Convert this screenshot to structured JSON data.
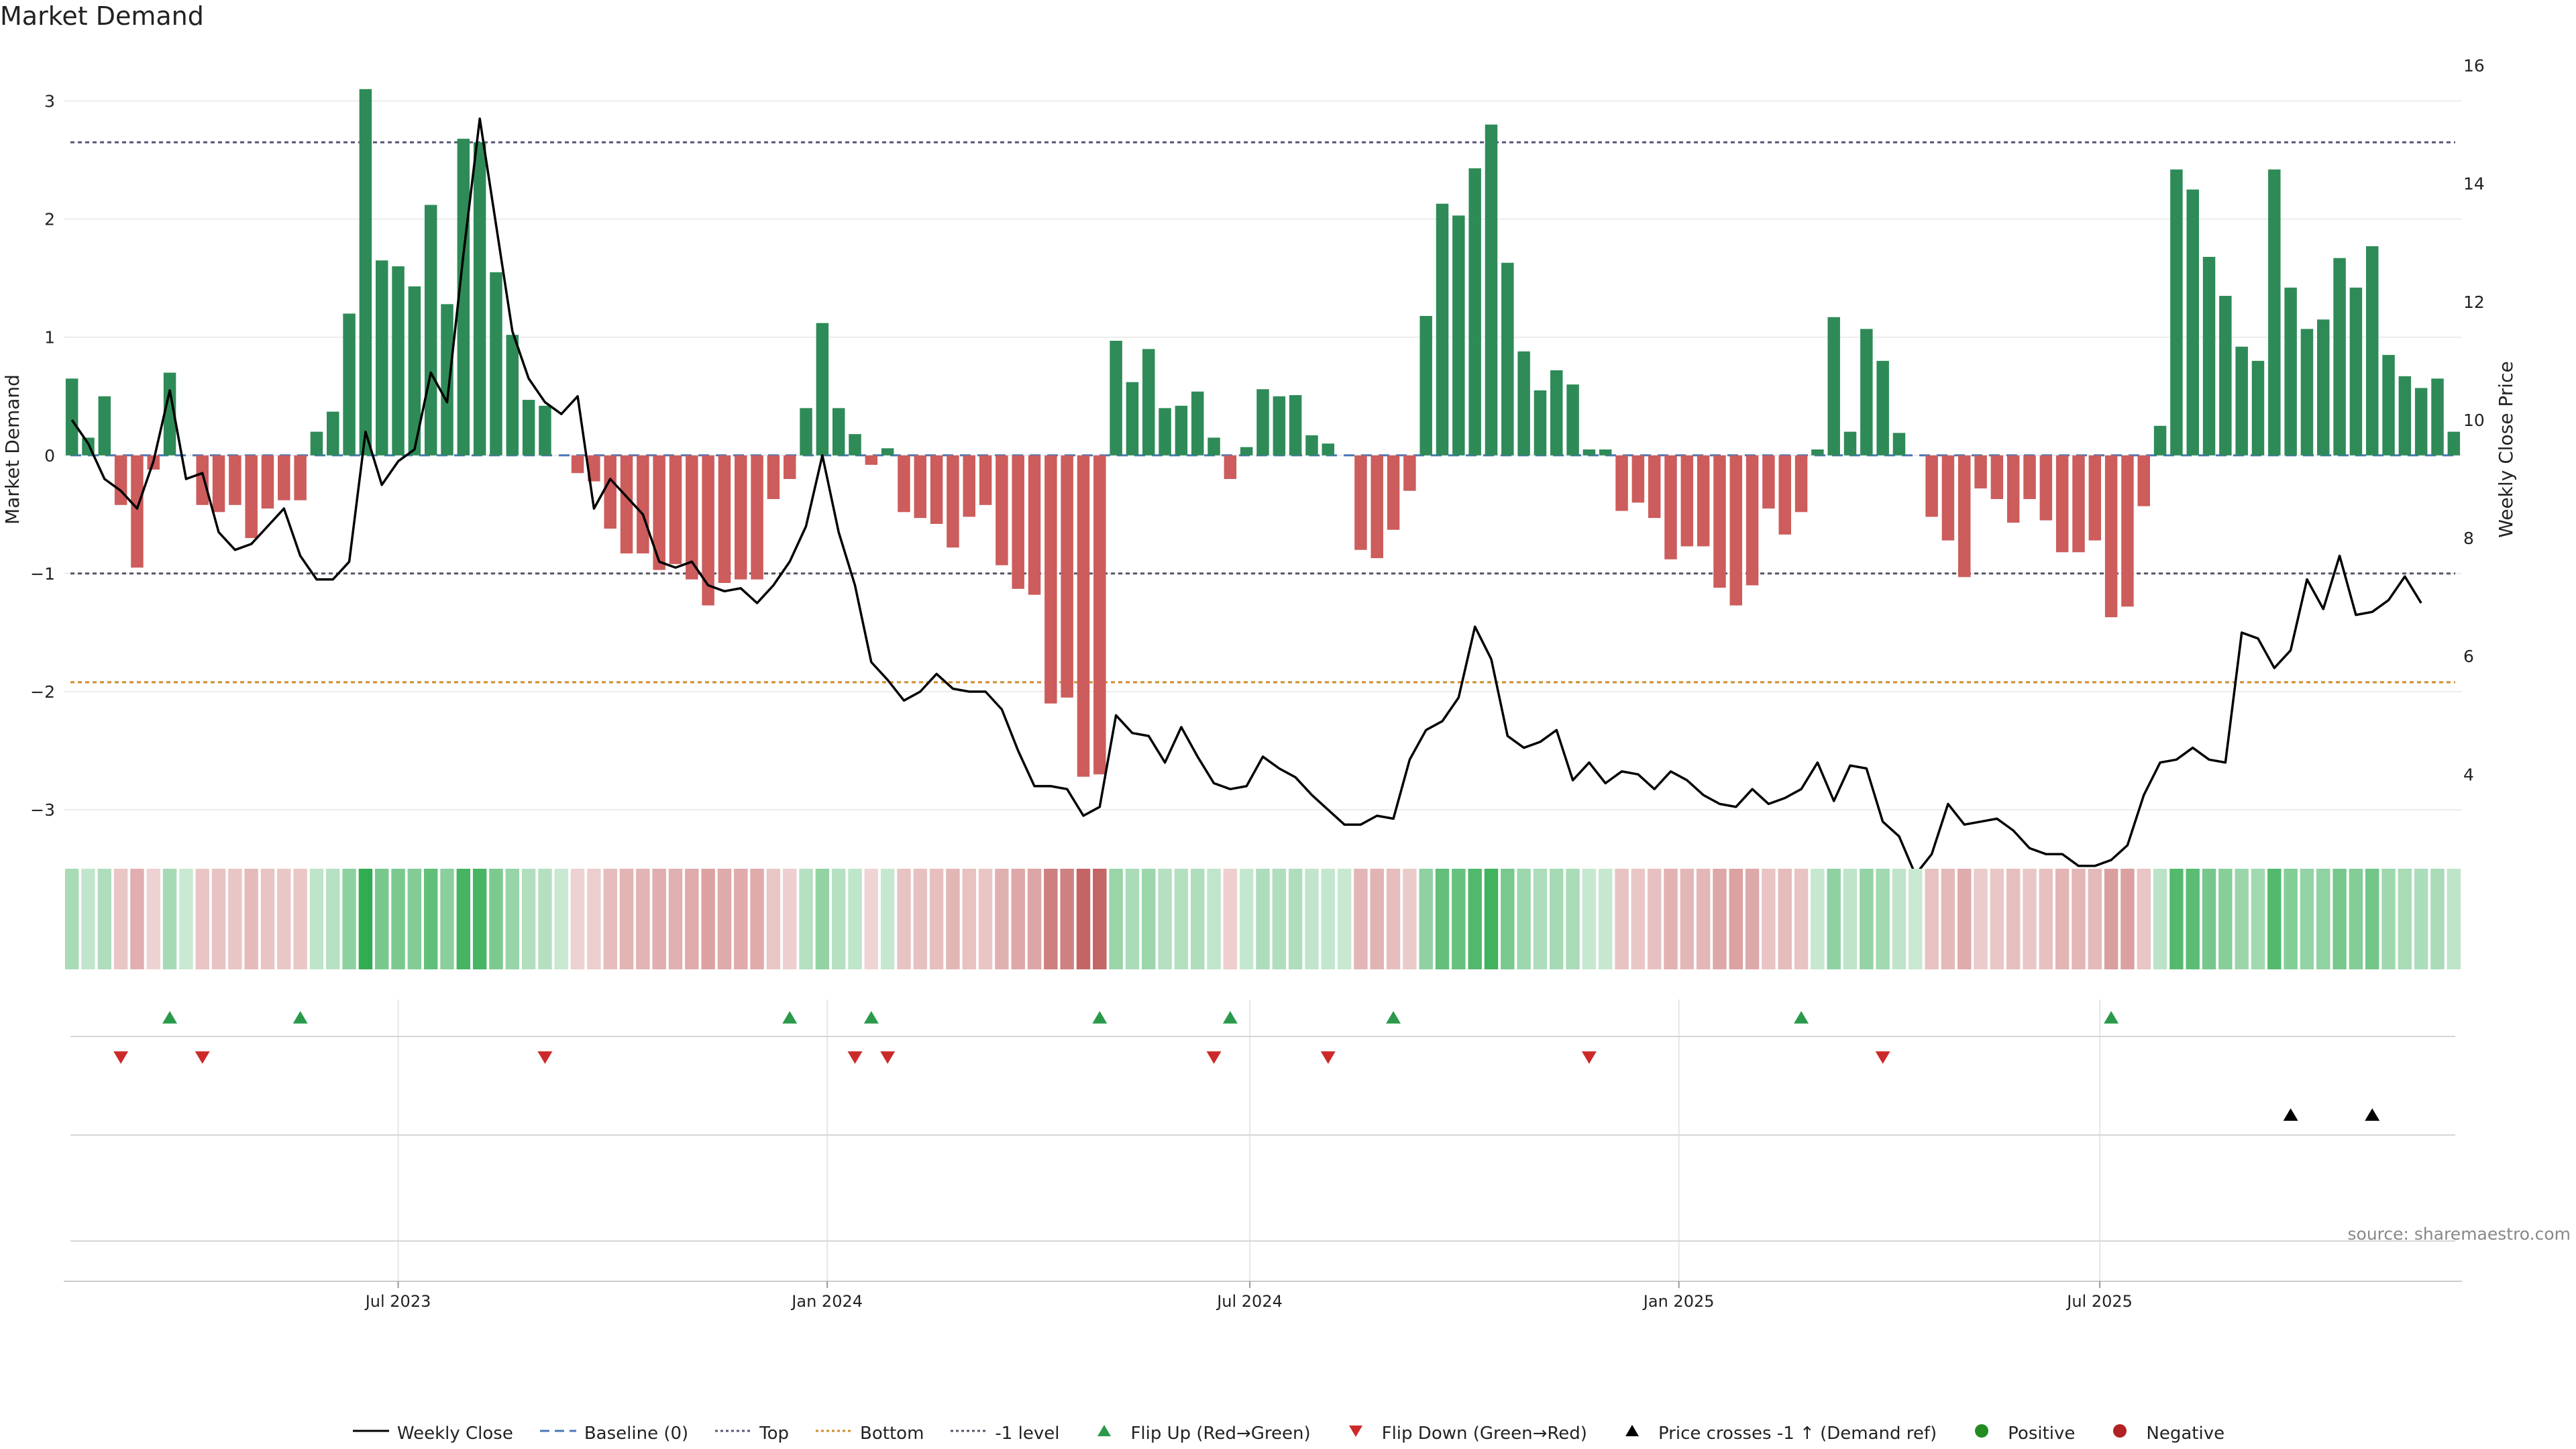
{
  "title": "Market Demand",
  "source": "source: sharemaestro.com",
  "legend": [
    {
      "label": "Weekly Close",
      "kind": "line",
      "color": "#000000"
    },
    {
      "label": "Baseline (0)",
      "kind": "dashed",
      "color": "#4a78b8"
    },
    {
      "label": "Top",
      "kind": "dotted",
      "color": "#555577"
    },
    {
      "label": "Bottom",
      "kind": "dotted",
      "color": "#d08a2a"
    },
    {
      "label": "-1 level",
      "kind": "dotted",
      "color": "#555566"
    },
    {
      "label": "Flip Up (Red→Green)",
      "kind": "tri-up",
      "color": "#2a9a4a"
    },
    {
      "label": "Flip Down (Green→Red)",
      "kind": "tri-down",
      "color": "#cc2a2a"
    },
    {
      "label": "Price crosses -1 ↑ (Demand ref)",
      "kind": "tri-up",
      "color": "#000000"
    },
    {
      "label": "Positive",
      "kind": "dot",
      "color": "#228b22"
    },
    {
      "label": "Negative",
      "kind": "dot",
      "color": "#b22222"
    }
  ],
  "chart_data": {
    "type": "bar",
    "title": "Market Demand",
    "ylabel": "Market Demand",
    "y2label": "Weekly Close Price",
    "ylim": [
      -3.3,
      3.4
    ],
    "y2lim": [
      2.8,
      16.2
    ],
    "yticks": [
      3,
      2,
      1,
      0,
      -1,
      -2,
      -3
    ],
    "ytick_labels": [
      "3",
      "2",
      "1",
      "0",
      "−1",
      "−2",
      "−3"
    ],
    "y2ticks": [
      16,
      14,
      12,
      10,
      8,
      6,
      4
    ],
    "xlabels": [
      {
        "label": "Jul 2023",
        "week": 20.5
      },
      {
        "label": "Jan 2024",
        "week": 46.8
      },
      {
        "label": "Jul 2024",
        "week": 72.7
      },
      {
        "label": "Jan 2025",
        "week": 99.0
      },
      {
        "label": "Jul 2025",
        "week": 124.8
      }
    ],
    "levels": {
      "top": 2.65,
      "bottom": -1.92,
      "minus_one": -1.0,
      "baseline": 0
    },
    "colors": {
      "positive": "#2e8b57",
      "negative": "#cd5c5c",
      "price": "#000000",
      "top": "#555577",
      "bottom": "#d08a2a",
      "minus_one": "#555566",
      "baseline": "#4a78b8"
    },
    "demand": [
      0.65,
      0.15,
      0.5,
      -0.42,
      -0.95,
      -0.12,
      0.7,
      0,
      -0.42,
      -0.48,
      -0.42,
      -0.7,
      -0.45,
      -0.38,
      -0.38,
      0.2,
      0.37,
      1.2,
      3.1,
      1.65,
      1.6,
      1.43,
      2.12,
      1.28,
      2.68,
      2.65,
      1.55,
      1.02,
      0.47,
      0.42,
      0,
      -0.15,
      -0.22,
      -0.62,
      -0.83,
      -0.83,
      -0.97,
      -0.92,
      -1.05,
      -1.27,
      -1.08,
      -1.05,
      -1.05,
      -0.37,
      -0.2,
      0.4,
      1.12,
      0.4,
      0.18,
      -0.08,
      0.06,
      -0.48,
      -0.53,
      -0.58,
      -0.78,
      -0.52,
      -0.42,
      -0.93,
      -1.13,
      -1.18,
      -2.1,
      -2.05,
      -2.72,
      -2.7,
      0.97,
      0.62,
      0.9,
      0.4,
      0.42,
      0.54,
      0.15,
      -0.2,
      0.07,
      0.56,
      0.5,
      0.51,
      0.17,
      0.1,
      0,
      -0.8,
      -0.87,
      -0.63,
      -0.3,
      1.18,
      2.13,
      2.03,
      2.43,
      2.8,
      1.63,
      0.88,
      0.55,
      0.72,
      0.6,
      0.05,
      0.05,
      -0.47,
      -0.4,
      -0.53,
      -0.88,
      -0.77,
      -0.77,
      -1.12,
      -1.27,
      -1.1,
      -0.45,
      -0.67,
      -0.48,
      0.05,
      1.17,
      0.2,
      1.07,
      0.8,
      0.19,
      0,
      -0.52,
      -0.72,
      -1.03,
      -0.28,
      -0.37,
      -0.57,
      -0.37,
      -0.55,
      -0.82,
      -0.82,
      -0.72,
      -1.37,
      -1.28,
      -0.43,
      0.25,
      2.42,
      2.25,
      1.68,
      1.35,
      0.92,
      0.8,
      2.42,
      1.42,
      1.07,
      1.15,
      1.67,
      1.42,
      1.77,
      0.85,
      0.67,
      0.57,
      0.65,
      0.2
    ],
    "close": [
      10.0,
      9.6,
      9.0,
      8.8,
      8.5,
      9.3,
      10.5,
      9.0,
      9.1,
      8.1,
      7.8,
      7.9,
      8.2,
      8.5,
      7.7,
      7.3,
      7.3,
      7.6,
      9.8,
      8.9,
      9.3,
      9.5,
      10.8,
      10.3,
      12.8,
      15.1,
      13.3,
      11.5,
      10.7,
      10.3,
      10.1,
      10.4,
      8.5,
      9.0,
      8.7,
      8.4,
      7.6,
      7.5,
      7.6,
      7.2,
      7.1,
      7.15,
      6.9,
      7.2,
      7.6,
      8.2,
      9.4,
      8.1,
      7.2,
      5.9,
      5.6,
      5.25,
      5.4,
      5.7,
      5.45,
      5.4,
      5.4,
      5.1,
      4.4,
      3.8,
      3.8,
      3.75,
      3.3,
      3.45,
      5.0,
      4.7,
      4.65,
      4.2,
      4.8,
      4.3,
      3.85,
      3.75,
      3.8,
      4.3,
      4.1,
      3.95,
      3.65,
      3.4,
      3.15,
      3.15,
      3.3,
      3.25,
      4.25,
      4.75,
      4.9,
      5.3,
      6.5,
      5.95,
      4.65,
      4.45,
      4.55,
      4.75,
      3.9,
      4.2,
      3.85,
      4.05,
      4.0,
      3.75,
      4.05,
      3.9,
      3.65,
      3.5,
      3.45,
      3.75,
      3.5,
      3.6,
      3.75,
      4.2,
      3.55,
      4.15,
      4.1,
      3.2,
      2.95,
      2.3,
      2.65,
      3.5,
      3.15,
      3.2,
      3.25,
      3.05,
      2.75,
      2.65,
      2.65,
      2.45,
      2.45,
      2.55,
      2.8,
      3.65,
      4.2,
      4.25,
      4.45,
      4.25,
      4.2,
      6.4,
      6.3,
      5.8,
      6.1,
      7.3,
      6.8,
      7.7,
      6.7,
      6.75,
      6.95,
      7.35,
      6.9
    ],
    "flip_up_weeks": [
      6,
      14,
      44,
      49,
      63,
      71,
      81,
      106,
      125
    ],
    "flip_down_weeks": [
      3,
      8,
      29,
      48,
      50,
      70,
      77,
      93,
      111
    ],
    "price_cross_weeks": [
      136,
      141
    ]
  }
}
